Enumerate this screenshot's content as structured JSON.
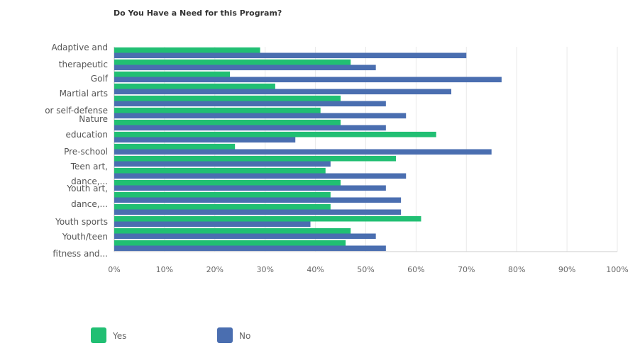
{
  "chart_data": {
    "type": "bar",
    "orientation": "horizontal",
    "title": "Do You Have a Need for this Program?",
    "xlabel": "",
    "ylabel": "",
    "xlim": [
      0,
      100
    ],
    "tick_labels": [
      "0%",
      "10%",
      "20%",
      "30%",
      "40%",
      "50%",
      "60%",
      "70%",
      "80%",
      "90%",
      "100%"
    ],
    "grid": true,
    "legend": "bottom",
    "category_labels": [
      [
        "Adaptive and",
        "therapeutic"
      ],
      [
        "Golf"
      ],
      [
        "Martial arts",
        "or self-defense"
      ],
      [
        "Nature",
        "education"
      ],
      [
        "Pre-school"
      ],
      [
        "Teen art,",
        "dance,..."
      ],
      [
        "Youth art,",
        "dance,..."
      ],
      [
        "Youth sports"
      ],
      [
        "Youth/teen",
        "fitness and..."
      ]
    ],
    "bar_rows": [
      {
        "yes": 29,
        "no": 70
      },
      {
        "yes": 47,
        "no": 52
      },
      {
        "yes": 23,
        "no": 77
      },
      {
        "yes": 32,
        "no": 67
      },
      {
        "yes": 45,
        "no": 54
      },
      {
        "yes": 41,
        "no": 58
      },
      {
        "yes": 45,
        "no": 54
      },
      {
        "yes": 64,
        "no": 36
      },
      {
        "yes": 24,
        "no": 75
      },
      {
        "yes": 56,
        "no": 43
      },
      {
        "yes": 42,
        "no": 58
      },
      {
        "yes": 45,
        "no": 54
      },
      {
        "yes": 43,
        "no": 57
      },
      {
        "yes": 43,
        "no": 57
      },
      {
        "yes": 61,
        "no": 39
      },
      {
        "yes": 47,
        "no": 52
      },
      {
        "yes": 46,
        "no": 54
      }
    ],
    "series": [
      {
        "name": "Yes",
        "color": "#21BF73"
      },
      {
        "name": "No",
        "color": "#4A6EB0"
      }
    ]
  }
}
